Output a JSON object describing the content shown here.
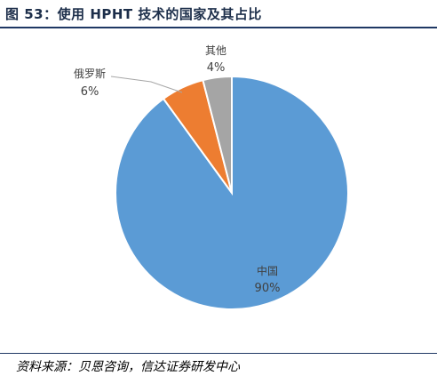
{
  "header": {
    "title": "图 53：使用 HPHT 技术的国家及其占比"
  },
  "footer": {
    "source": "资料来源：贝恩咨询，信达证券研发中心"
  },
  "chart_data": {
    "type": "pie",
    "title": "",
    "start_angle_deg": 0,
    "direction": "clockwise",
    "slices": [
      {
        "label": "中国",
        "value": 90,
        "value_label": "90%",
        "color": "#5b9bd5"
      },
      {
        "label": "俄罗斯",
        "value": 6,
        "value_label": "6%",
        "color": "#ed7d31"
      },
      {
        "label": "其他",
        "value": 4,
        "value_label": "4%",
        "color": "#a5a5a5"
      }
    ]
  }
}
